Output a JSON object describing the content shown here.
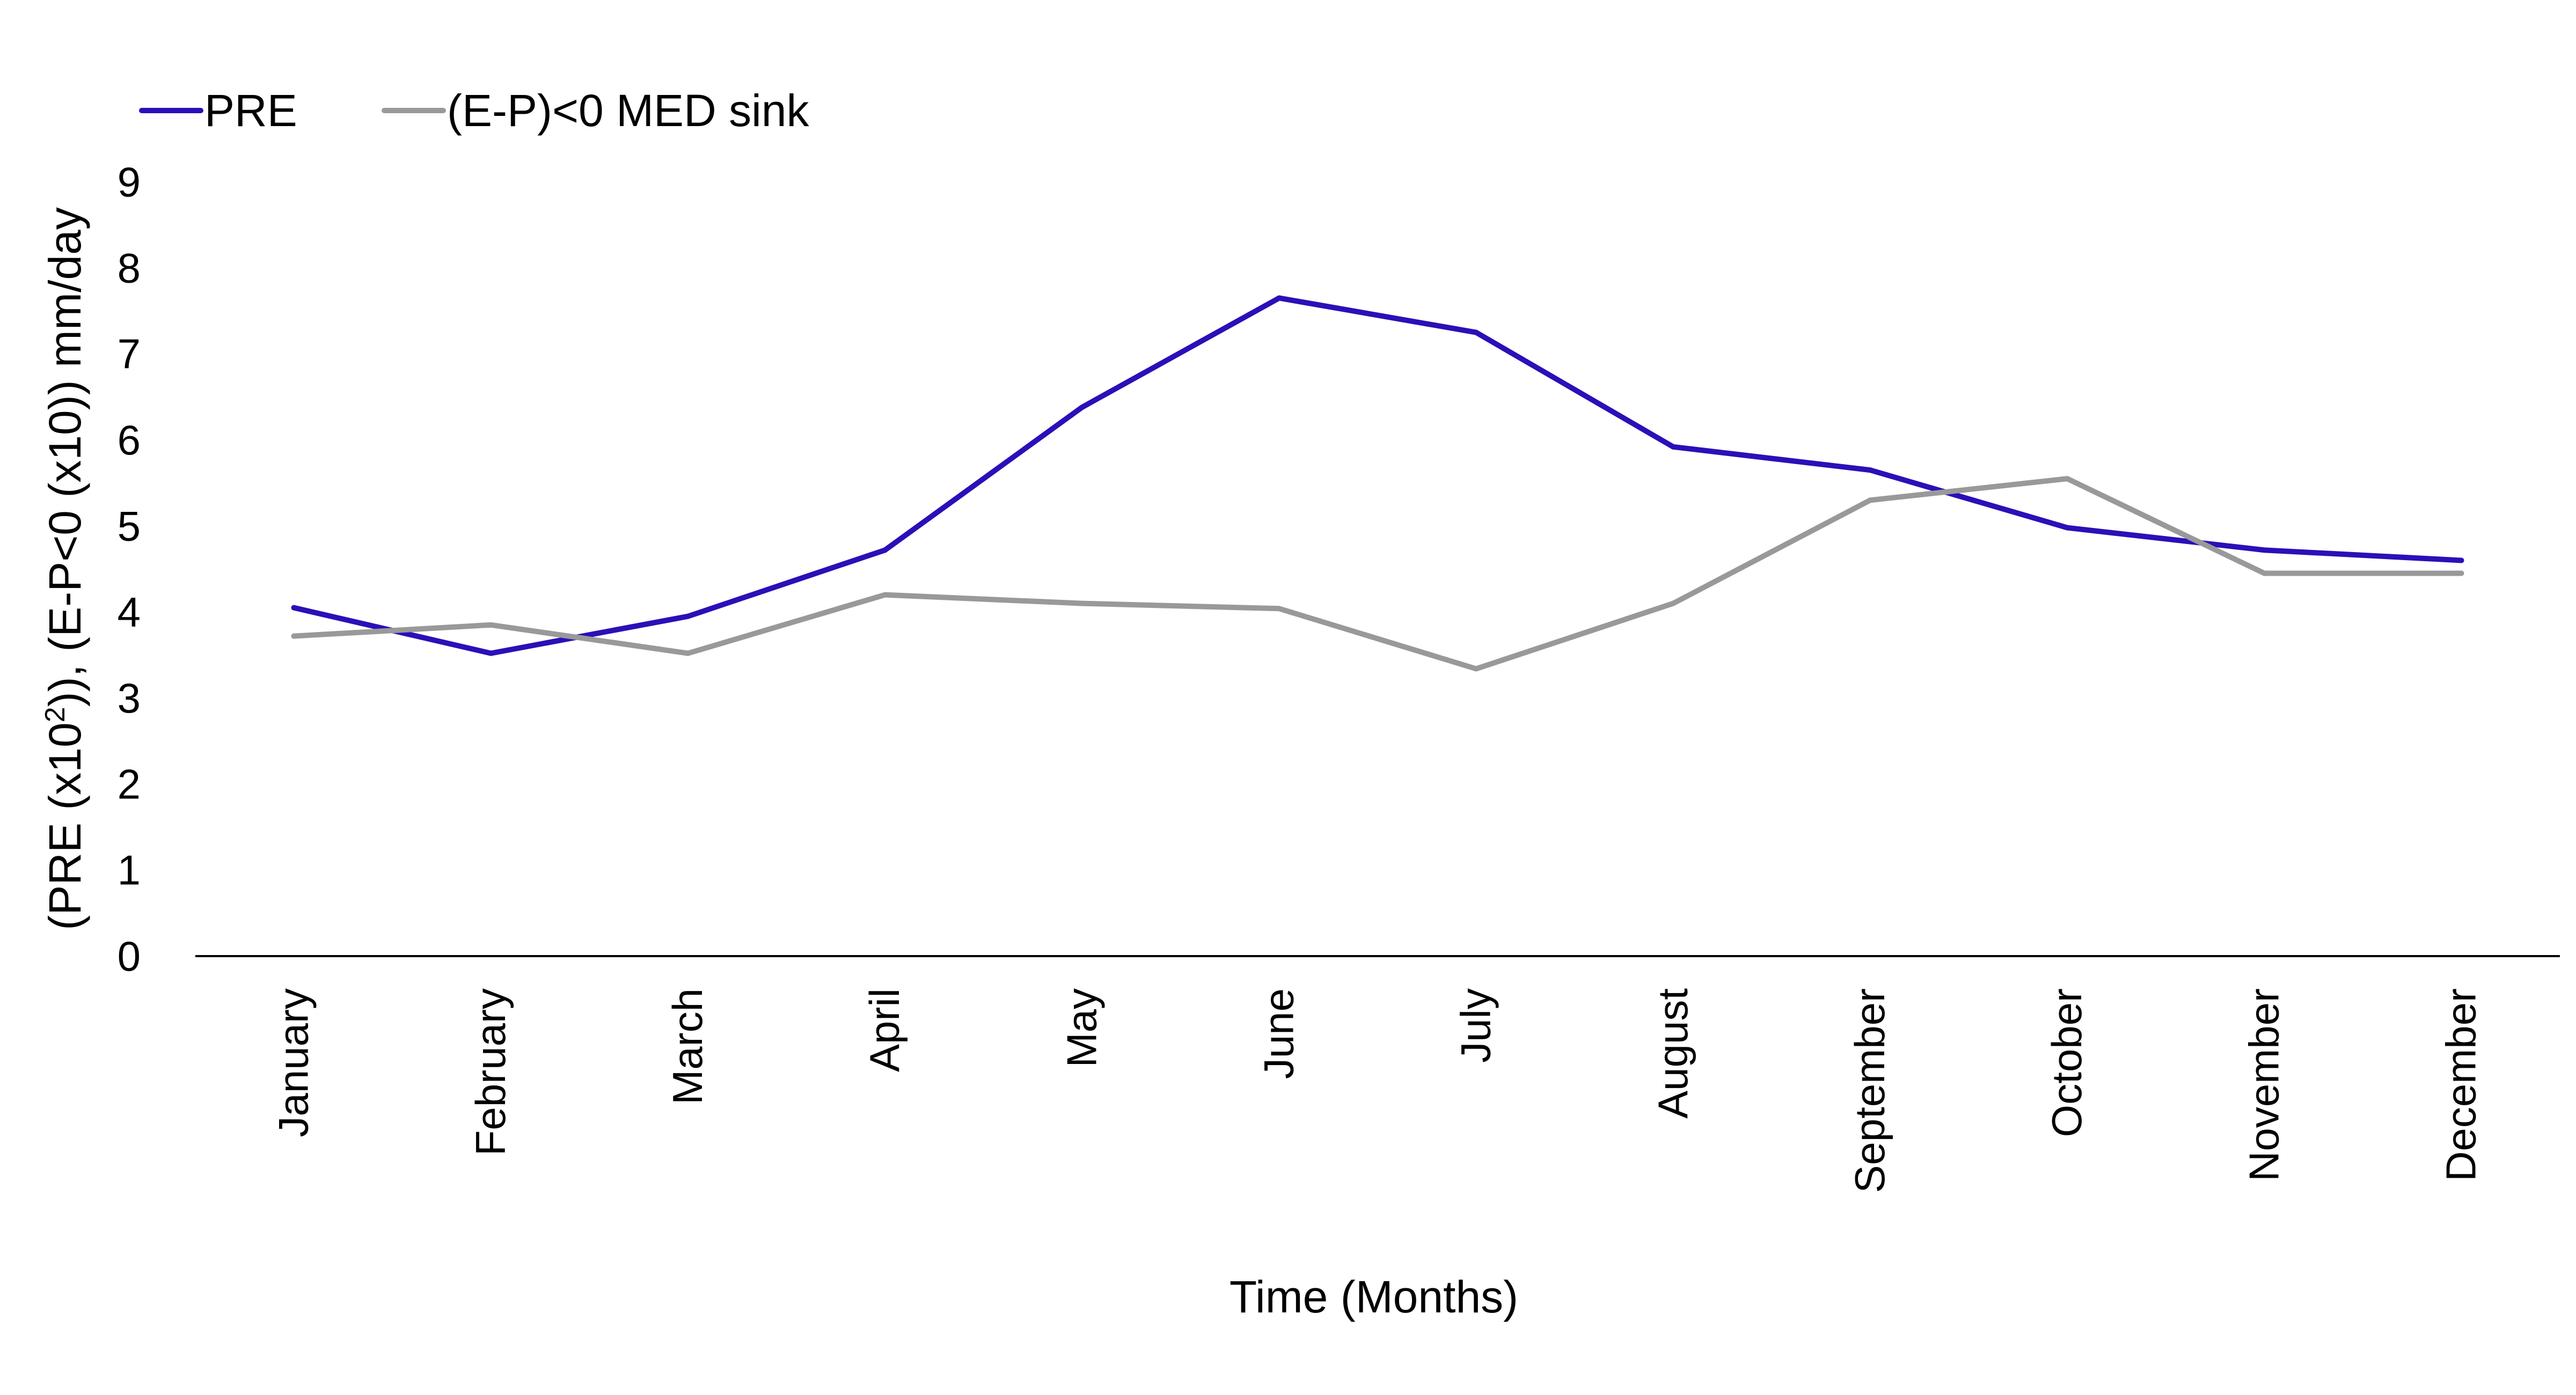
{
  "chart_data": {
    "type": "line",
    "title": "",
    "xlabel": "Time (Months)",
    "ylabel": {
      "prefix": "(PRE (x10",
      "sup": "2",
      "suffix": ")), (E-P<0 (x10)) mm/day"
    },
    "ylim": [
      0,
      9
    ],
    "yticks": [
      0,
      1,
      2,
      3,
      4,
      5,
      6,
      7,
      8,
      9
    ],
    "grid": false,
    "legend_position": "top-left",
    "categories": [
      "January",
      "February",
      "March",
      "April",
      "May",
      "June",
      "July",
      "August",
      "September",
      "October",
      "November",
      "December"
    ],
    "series": [
      {
        "name": "PRE",
        "color": "#2a10b8",
        "values": [
          4.05,
          3.52,
          3.95,
          4.72,
          6.38,
          7.65,
          7.25,
          5.92,
          5.65,
          4.98,
          4.72,
          4.6
        ]
      },
      {
        "name": "(E-P)<0  MED sink",
        "color": "#999999",
        "values": [
          3.72,
          3.85,
          3.52,
          4.2,
          4.1,
          4.04,
          3.34,
          4.1,
          5.3,
          5.55,
          4.45,
          4.45
        ]
      }
    ]
  }
}
